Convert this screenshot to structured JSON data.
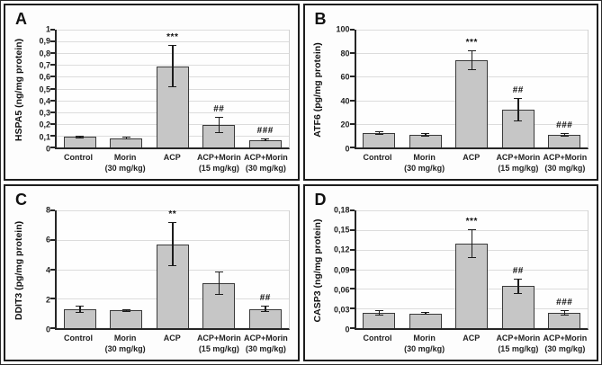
{
  "colors": {
    "bar_fill": "#c6c6c6",
    "bar_border": "#3a3a3a",
    "gridline": "#dcdcdc",
    "axis": "#262626",
    "panel_border": "#1d1d1d",
    "text": "#1a1a1a",
    "background": "#ffffff"
  },
  "chart_data": [
    {
      "panel": "A",
      "type": "bar",
      "ylabel": "HSPA5 (ng/mg protein)",
      "ylim": [
        0,
        1
      ],
      "ytick_labels": [
        "1",
        "0,9",
        "0,8",
        "0,7",
        "0,6",
        "0,5",
        "0,4",
        "0,3",
        "0,2",
        "0,1",
        "0"
      ],
      "grid": true,
      "legend": "none",
      "categories": [
        {
          "label": "Control",
          "sub": ""
        },
        {
          "label": "Morin",
          "sub": "(30 mg/kg)"
        },
        {
          "label": "ACP",
          "sub": ""
        },
        {
          "label": "ACP+Morin",
          "sub": "(15 mg/kg)"
        },
        {
          "label": "ACP+Morin",
          "sub": "(30 mg/kg)"
        }
      ],
      "values": [
        0.09,
        0.075,
        0.69,
        0.19,
        0.065
      ],
      "errors": [
        0.01,
        0.008,
        0.18,
        0.07,
        0.008
      ],
      "sig": [
        "",
        "",
        "***",
        "##",
        "###"
      ]
    },
    {
      "panel": "B",
      "type": "bar",
      "ylabel": "ATF6 (pg/mg protein)",
      "ylim": [
        0,
        100
      ],
      "ytick_labels": [
        "100",
        "80",
        "60",
        "40",
        "20",
        "0"
      ],
      "grid": true,
      "legend": "none",
      "categories": [
        {
          "label": "Control",
          "sub": ""
        },
        {
          "label": "Morin",
          "sub": "(30 mg/kg)"
        },
        {
          "label": "ACP",
          "sub": ""
        },
        {
          "label": "ACP+Morin",
          "sub": "(15 mg/kg)"
        },
        {
          "label": "ACP+Morin",
          "sub": "(30 mg/kg)"
        }
      ],
      "values": [
        12,
        11,
        74,
        32,
        11
      ],
      "errors": [
        1.5,
        1.5,
        8.5,
        10,
        1.5
      ],
      "sig": [
        "",
        "",
        "***",
        "##",
        "###"
      ]
    },
    {
      "panel": "C",
      "type": "bar",
      "ylabel": "DDIT3 (pg/mg protein)",
      "ylim": [
        0,
        8
      ],
      "ytick_labels": [
        "8",
        "6",
        "4",
        "2",
        "0"
      ],
      "grid": true,
      "legend": "none",
      "categories": [
        {
          "label": "Control",
          "sub": ""
        },
        {
          "label": "Morin",
          "sub": "(30 mg/kg)"
        },
        {
          "label": "ACP",
          "sub": ""
        },
        {
          "label": "ACP+Morin",
          "sub": "(15 mg/kg)"
        },
        {
          "label": "ACP+Morin",
          "sub": "(30 mg/kg)"
        }
      ],
      "values": [
        1.3,
        1.2,
        5.7,
        3.05,
        1.3
      ],
      "errors": [
        0.25,
        0.1,
        1.5,
        0.8,
        0.2
      ],
      "sig": [
        "",
        "",
        "**",
        "",
        "##"
      ]
    },
    {
      "panel": "D",
      "type": "bar",
      "ylabel": "CASP3 (ng/mg protein)",
      "ylim": [
        0,
        0.18
      ],
      "ytick_labels": [
        "0,18",
        "0,15",
        "0,12",
        "0,09",
        "0,06",
        "0,03",
        "0"
      ],
      "grid": true,
      "legend": "none",
      "categories": [
        {
          "label": "Control",
          "sub": ""
        },
        {
          "label": "Morin",
          "sub": "(30 mg/kg)"
        },
        {
          "label": "ACP",
          "sub": ""
        },
        {
          "label": "ACP+Morin",
          "sub": "(15 mg/kg)"
        },
        {
          "label": "ACP+Morin",
          "sub": "(30 mg/kg)"
        }
      ],
      "values": [
        0.023,
        0.022,
        0.129,
        0.064,
        0.023
      ],
      "errors": [
        0.004,
        0.002,
        0.022,
        0.012,
        0.004
      ],
      "sig": [
        "",
        "",
        "***",
        "##",
        "###"
      ]
    }
  ]
}
